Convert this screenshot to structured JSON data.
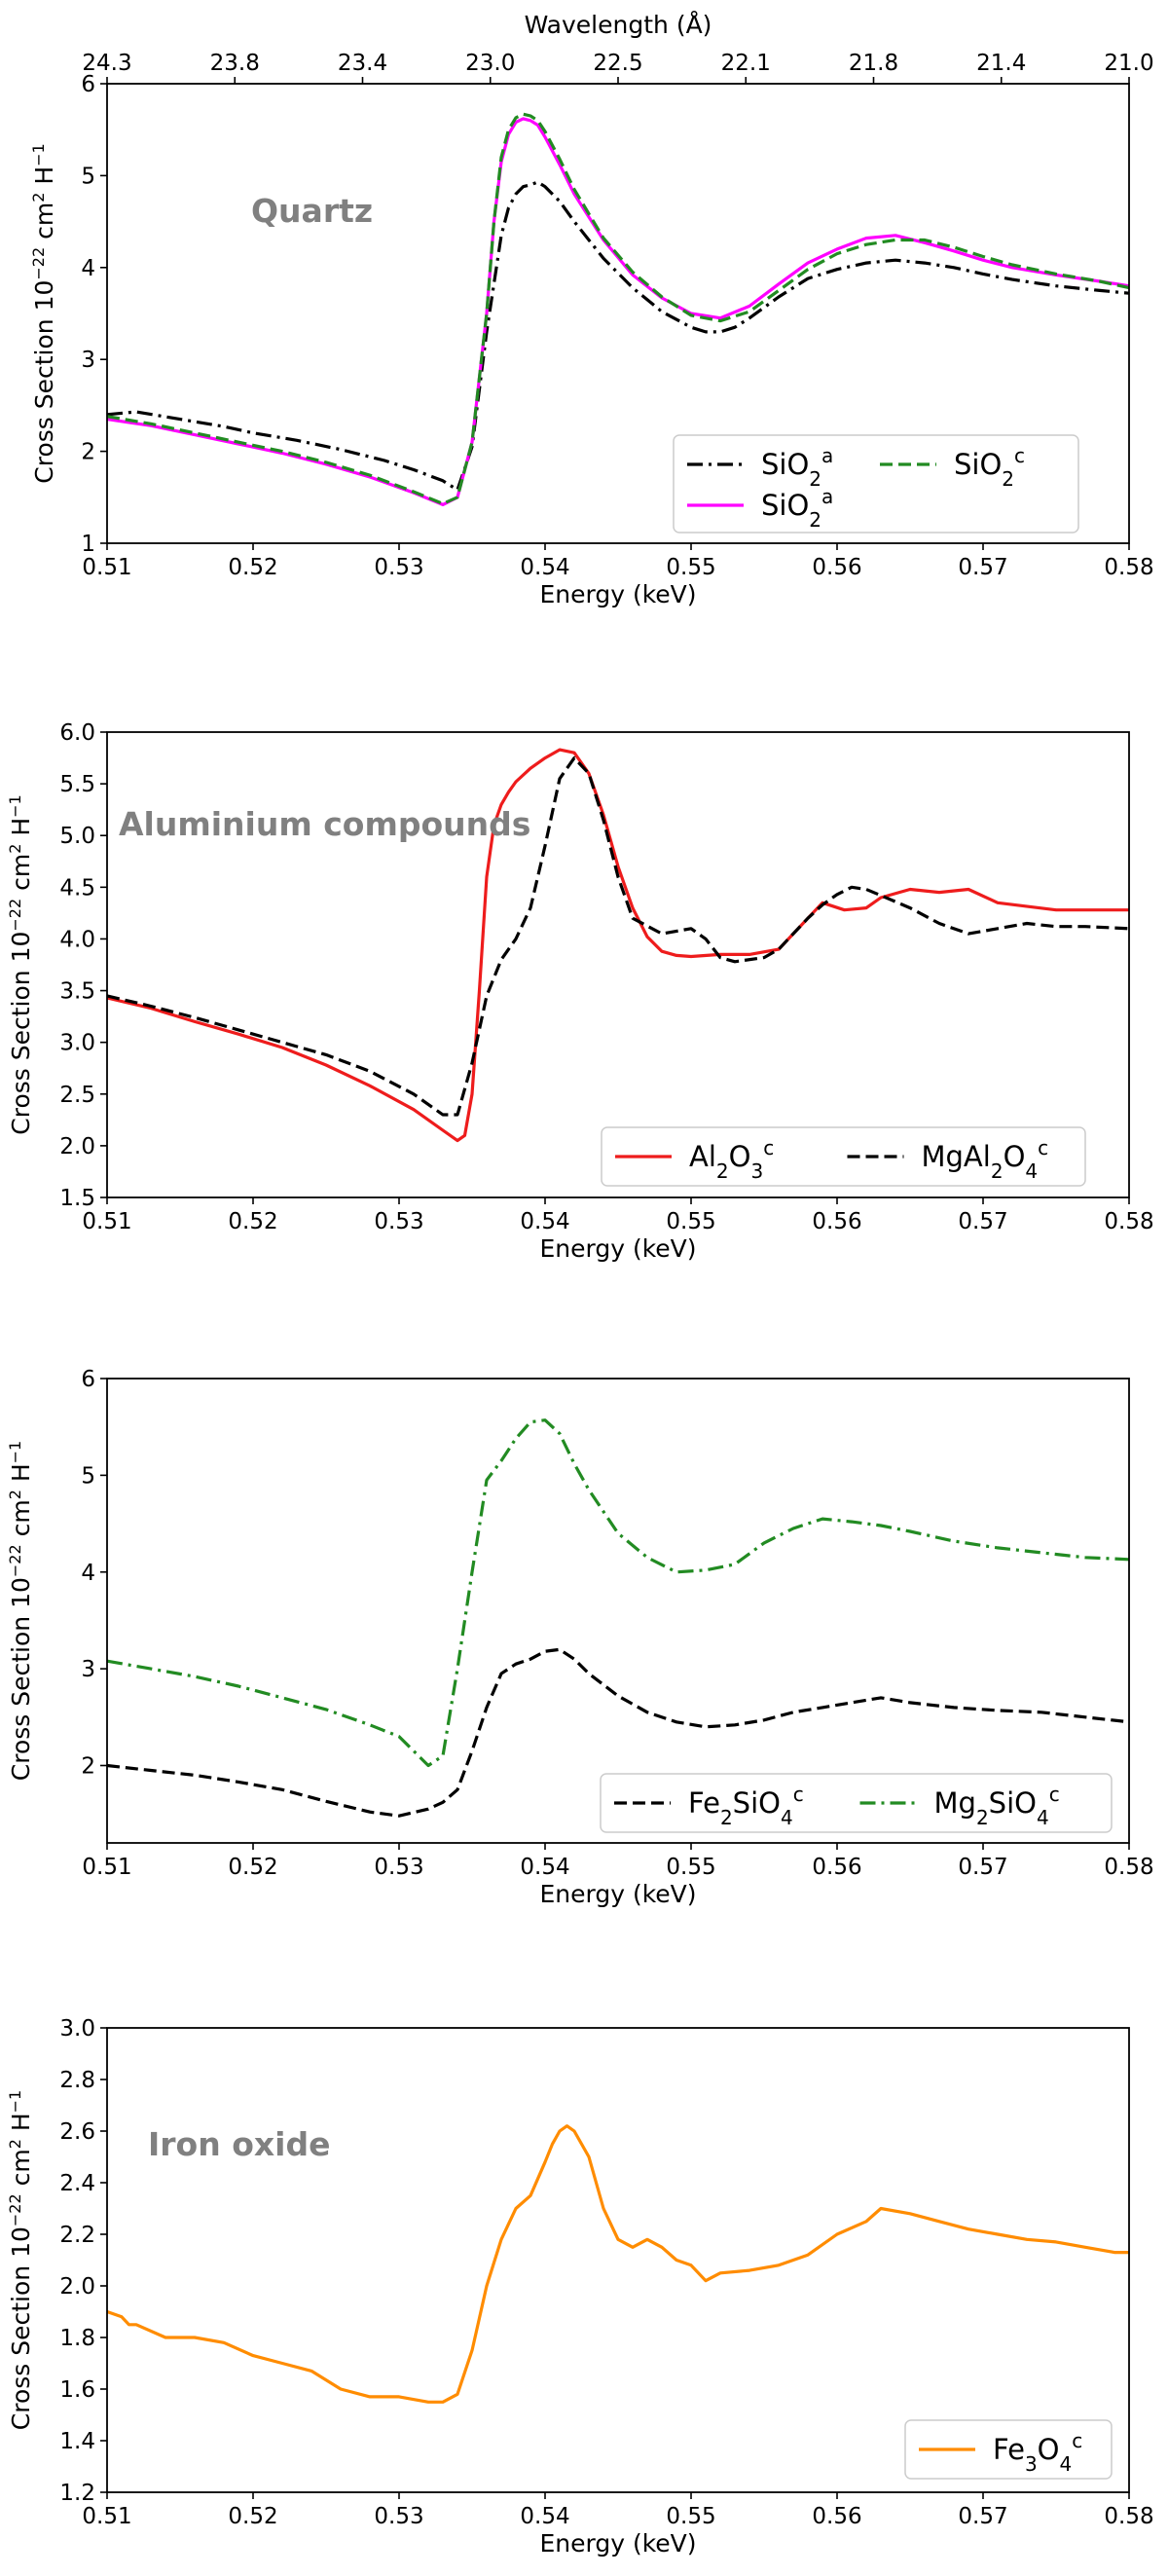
{
  "chart_data": [
    {
      "type": "line",
      "panel_title": "Quartz",
      "xlabel": "Energy (keV)",
      "ylabel": "Cross Section 10^{-22} cm^{2} H^{-1}",
      "xlim": [
        0.51,
        0.58
      ],
      "ylim": [
        1,
        6
      ],
      "xticks": [
        0.51,
        0.52,
        0.53,
        0.54,
        0.55,
        0.56,
        0.57,
        0.58
      ],
      "xtick_labels": [
        "0.51",
        "0.52",
        "0.53",
        "0.54",
        "0.55",
        "0.56",
        "0.57",
        "0.58"
      ],
      "yticks": [
        1,
        2,
        3,
        4,
        5,
        6
      ],
      "ytick_labels": [
        "1",
        "2",
        "3",
        "4",
        "5",
        "6"
      ],
      "top_axis": {
        "label": "Wavelength (Å)",
        "tick_labels": [
          "24.3",
          "23.8",
          "23.4",
          "23.0",
          "22.5",
          "22.1",
          "21.8",
          "21.4",
          "21.0"
        ]
      },
      "legend_columns": 2,
      "series": [
        {
          "name": "SiO2 (a)",
          "formula": [
            "SiO",
            "2",
            ""
          ],
          "sup": "a",
          "color": "#000000",
          "dash": "16,6,3,6",
          "x": [
            0.51,
            0.512,
            0.515,
            0.518,
            0.52,
            0.523,
            0.526,
            0.529,
            0.531,
            0.533,
            0.534,
            0.535,
            0.536,
            0.537,
            0.5375,
            0.538,
            0.5385,
            0.539,
            0.5395,
            0.54,
            0.541,
            0.542,
            0.544,
            0.546,
            0.548,
            0.55,
            0.551,
            0.552,
            0.553,
            0.554,
            0.556,
            0.558,
            0.56,
            0.562,
            0.564,
            0.566,
            0.568,
            0.57,
            0.572,
            0.575,
            0.578,
            0.58
          ],
          "y": [
            2.4,
            2.43,
            2.35,
            2.27,
            2.2,
            2.12,
            2.02,
            1.9,
            1.8,
            1.68,
            1.58,
            2.05,
            3.3,
            4.35,
            4.65,
            4.8,
            4.88,
            4.9,
            4.93,
            4.88,
            4.72,
            4.5,
            4.1,
            3.78,
            3.52,
            3.35,
            3.3,
            3.3,
            3.35,
            3.45,
            3.68,
            3.88,
            3.98,
            4.05,
            4.08,
            4.05,
            4.0,
            3.93,
            3.87,
            3.8,
            3.75,
            3.72
          ]
        },
        {
          "name": "SiO2 (a) magenta",
          "formula": [
            "SiO",
            "2",
            ""
          ],
          "sup": "a",
          "color": "#ff00ff",
          "dash": "",
          "x": [
            0.51,
            0.513,
            0.516,
            0.519,
            0.522,
            0.525,
            0.528,
            0.531,
            0.533,
            0.534,
            0.535,
            0.536,
            0.5365,
            0.537,
            0.5375,
            0.538,
            0.5385,
            0.539,
            0.5395,
            0.54,
            0.541,
            0.542,
            0.544,
            0.546,
            0.548,
            0.55,
            0.552,
            0.554,
            0.556,
            0.558,
            0.56,
            0.562,
            0.564,
            0.566,
            0.568,
            0.57,
            0.572,
            0.575,
            0.578,
            0.58
          ],
          "y": [
            2.35,
            2.28,
            2.18,
            2.08,
            1.98,
            1.86,
            1.72,
            1.55,
            1.42,
            1.5,
            2.1,
            3.5,
            4.5,
            5.15,
            5.45,
            5.58,
            5.62,
            5.6,
            5.55,
            5.42,
            5.12,
            4.8,
            4.3,
            3.92,
            3.67,
            3.5,
            3.45,
            3.58,
            3.82,
            4.05,
            4.2,
            4.32,
            4.35,
            4.27,
            4.18,
            4.08,
            4.0,
            3.92,
            3.85,
            3.8
          ]
        },
        {
          "name": "SiO2 (c)",
          "formula": [
            "SiO",
            "2",
            ""
          ],
          "sup": "c",
          "color": "#228b22",
          "dash": "13,6",
          "x": [
            0.51,
            0.513,
            0.516,
            0.519,
            0.522,
            0.525,
            0.528,
            0.531,
            0.533,
            0.534,
            0.535,
            0.536,
            0.5365,
            0.537,
            0.5375,
            0.538,
            0.5385,
            0.539,
            0.5395,
            0.54,
            0.541,
            0.542,
            0.544,
            0.546,
            0.548,
            0.55,
            0.552,
            0.554,
            0.556,
            0.558,
            0.56,
            0.562,
            0.564,
            0.566,
            0.568,
            0.57,
            0.572,
            0.575,
            0.578,
            0.58
          ],
          "y": [
            2.38,
            2.3,
            2.2,
            2.1,
            2.0,
            1.88,
            1.74,
            1.56,
            1.43,
            1.5,
            2.1,
            3.5,
            4.5,
            5.2,
            5.5,
            5.63,
            5.67,
            5.65,
            5.6,
            5.48,
            5.18,
            4.85,
            4.32,
            3.95,
            3.68,
            3.48,
            3.42,
            3.52,
            3.75,
            3.98,
            4.15,
            4.25,
            4.3,
            4.3,
            4.22,
            4.12,
            4.03,
            3.93,
            3.85,
            3.78
          ]
        }
      ]
    },
    {
      "type": "line",
      "panel_title": "Aluminium compounds",
      "xlabel": "Energy (keV)",
      "ylabel": "Cross Section 10^{-22} cm^{2} H^{-1}",
      "xlim": [
        0.51,
        0.58
      ],
      "ylim": [
        1.5,
        6.0
      ],
      "xticks": [
        0.51,
        0.52,
        0.53,
        0.54,
        0.55,
        0.56,
        0.57,
        0.58
      ],
      "xtick_labels": [
        "0.51",
        "0.52",
        "0.53",
        "0.54",
        "0.55",
        "0.56",
        "0.57",
        "0.58"
      ],
      "yticks": [
        1.5,
        2.0,
        2.5,
        3.0,
        3.5,
        4.0,
        4.5,
        5.0,
        5.5,
        6.0
      ],
      "ytick_labels": [
        "1.5",
        "2.0",
        "2.5",
        "3.0",
        "3.5",
        "4.0",
        "4.5",
        "5.0",
        "5.5",
        "6.0"
      ],
      "legend_columns": 2,
      "series": [
        {
          "name": "Al2O3 (c)",
          "formula": [
            "Al",
            "2",
            "O",
            "3",
            ""
          ],
          "sup": "c",
          "color": "#ee1c1c",
          "dash": "",
          "x": [
            0.51,
            0.513,
            0.516,
            0.519,
            0.522,
            0.525,
            0.528,
            0.531,
            0.533,
            0.534,
            0.5345,
            0.535,
            0.5355,
            0.536,
            0.5365,
            0.537,
            0.5375,
            0.538,
            0.539,
            0.54,
            0.541,
            0.542,
            0.543,
            0.544,
            0.545,
            0.546,
            0.547,
            0.548,
            0.549,
            0.55,
            0.552,
            0.554,
            0.556,
            0.558,
            0.559,
            0.5605,
            0.562,
            0.563,
            0.565,
            0.567,
            0.569,
            0.571,
            0.575,
            0.58
          ],
          "y": [
            3.43,
            3.33,
            3.2,
            3.08,
            2.95,
            2.78,
            2.58,
            2.35,
            2.15,
            2.05,
            2.1,
            2.5,
            3.5,
            4.6,
            5.1,
            5.3,
            5.42,
            5.52,
            5.65,
            5.75,
            5.83,
            5.8,
            5.6,
            5.2,
            4.7,
            4.3,
            4.02,
            3.88,
            3.84,
            3.83,
            3.85,
            3.85,
            3.9,
            4.2,
            4.35,
            4.28,
            4.3,
            4.4,
            4.48,
            4.45,
            4.48,
            4.35,
            4.28,
            4.28
          ]
        },
        {
          "name": "MgAl2O4 (c)",
          "formula": [
            "MgAl",
            "2",
            "O",
            "4",
            ""
          ],
          "sup": "c",
          "color": "#000000",
          "dash": "13,6",
          "x": [
            0.51,
            0.513,
            0.516,
            0.519,
            0.522,
            0.525,
            0.528,
            0.531,
            0.533,
            0.534,
            0.535,
            0.536,
            0.537,
            0.538,
            0.539,
            0.54,
            0.541,
            0.542,
            0.543,
            0.544,
            0.545,
            0.546,
            0.548,
            0.55,
            0.551,
            0.552,
            0.553,
            0.555,
            0.556,
            0.557,
            0.558,
            0.559,
            0.56,
            0.561,
            0.562,
            0.563,
            0.565,
            0.567,
            0.569,
            0.571,
            0.573,
            0.575,
            0.577,
            0.58
          ],
          "y": [
            3.45,
            3.35,
            3.24,
            3.12,
            3.0,
            2.88,
            2.72,
            2.5,
            2.3,
            2.3,
            2.8,
            3.45,
            3.8,
            4.0,
            4.3,
            4.9,
            5.55,
            5.75,
            5.6,
            5.15,
            4.6,
            4.2,
            4.05,
            4.1,
            4.0,
            3.82,
            3.78,
            3.82,
            3.9,
            4.05,
            4.2,
            4.33,
            4.43,
            4.5,
            4.48,
            4.42,
            4.3,
            4.15,
            4.05,
            4.1,
            4.15,
            4.12,
            4.12,
            4.1
          ]
        }
      ]
    },
    {
      "type": "line",
      "panel_title": "",
      "xlabel": "Energy (keV)",
      "ylabel": "Cross Section 10^{-22} cm^{2} H^{-1}",
      "xlim": [
        0.51,
        0.58
      ],
      "ylim": [
        1.2,
        6
      ],
      "xticks": [
        0.51,
        0.52,
        0.53,
        0.54,
        0.55,
        0.56,
        0.57,
        0.58
      ],
      "xtick_labels": [
        "0.51",
        "0.52",
        "0.53",
        "0.54",
        "0.55",
        "0.56",
        "0.57",
        "0.58"
      ],
      "yticks": [
        2,
        3,
        4,
        5,
        6
      ],
      "ytick_labels": [
        "2",
        "3",
        "4",
        "5",
        "6"
      ],
      "legend_columns": 2,
      "series": [
        {
          "name": "Fe2SiO4 (c)",
          "formula": [
            "Fe",
            "2",
            "SiO",
            "4",
            ""
          ],
          "sup": "c",
          "color": "#000000",
          "dash": "13,6",
          "x": [
            0.51,
            0.513,
            0.516,
            0.519,
            0.522,
            0.525,
            0.528,
            0.53,
            0.532,
            0.533,
            0.534,
            0.535,
            0.536,
            0.537,
            0.538,
            0.539,
            0.54,
            0.541,
            0.542,
            0.543,
            0.545,
            0.547,
            0.549,
            0.551,
            0.553,
            0.555,
            0.557,
            0.559,
            0.561,
            0.563,
            0.565,
            0.568,
            0.571,
            0.574,
            0.577,
            0.58
          ],
          "y": [
            2.0,
            1.95,
            1.9,
            1.83,
            1.75,
            1.63,
            1.52,
            1.48,
            1.55,
            1.62,
            1.75,
            2.15,
            2.6,
            2.95,
            3.05,
            3.1,
            3.18,
            3.2,
            3.1,
            2.95,
            2.72,
            2.55,
            2.45,
            2.4,
            2.42,
            2.47,
            2.55,
            2.6,
            2.65,
            2.7,
            2.65,
            2.6,
            2.57,
            2.55,
            2.5,
            2.45
          ]
        },
        {
          "name": "Mg2SiO4 (c)",
          "formula": [
            "Mg",
            "2",
            "SiO",
            "4",
            ""
          ],
          "sup": "c",
          "color": "#228b22",
          "dash": "16,6,3,6",
          "x": [
            0.51,
            0.513,
            0.516,
            0.519,
            0.522,
            0.525,
            0.528,
            0.53,
            0.531,
            0.532,
            0.533,
            0.534,
            0.535,
            0.536,
            0.537,
            0.538,
            0.539,
            0.54,
            0.541,
            0.542,
            0.543,
            0.545,
            0.547,
            0.549,
            0.551,
            0.553,
            0.555,
            0.557,
            0.559,
            0.561,
            0.563,
            0.565,
            0.568,
            0.571,
            0.574,
            0.577,
            0.58
          ],
          "y": [
            3.08,
            3.0,
            2.92,
            2.82,
            2.7,
            2.58,
            2.42,
            2.3,
            2.15,
            2.0,
            2.1,
            3.0,
            4.0,
            4.95,
            5.15,
            5.38,
            5.55,
            5.57,
            5.43,
            5.12,
            4.85,
            4.4,
            4.15,
            4.0,
            4.02,
            4.08,
            4.3,
            4.45,
            4.55,
            4.52,
            4.48,
            4.42,
            4.32,
            4.25,
            4.2,
            4.15,
            4.13
          ]
        }
      ]
    },
    {
      "type": "line",
      "panel_title": "Iron oxide",
      "xlabel": "Energy (keV)",
      "ylabel": "Cross Section 10^{-22} cm^{2} H^{-1}",
      "xlim": [
        0.51,
        0.58
      ],
      "ylim": [
        1.2,
        3.0
      ],
      "xticks": [
        0.51,
        0.52,
        0.53,
        0.54,
        0.55,
        0.56,
        0.57,
        0.58
      ],
      "xtick_labels": [
        "0.51",
        "0.52",
        "0.53",
        "0.54",
        "0.55",
        "0.56",
        "0.57",
        "0.58"
      ],
      "yticks": [
        1.2,
        1.4,
        1.6,
        1.8,
        2.0,
        2.2,
        2.4,
        2.6,
        2.8,
        3.0
      ],
      "ytick_labels": [
        "1.2",
        "1.4",
        "1.6",
        "1.8",
        "2.0",
        "2.2",
        "2.4",
        "2.6",
        "2.8",
        "3.0"
      ],
      "legend_columns": 1,
      "series": [
        {
          "name": "Fe3O4 (c)",
          "formula": [
            "Fe",
            "3",
            "O",
            "4",
            ""
          ],
          "sup": "c",
          "color": "#ff8c00",
          "dash": "",
          "x": [
            0.51,
            0.511,
            0.5115,
            0.512,
            0.514,
            0.516,
            0.518,
            0.52,
            0.522,
            0.524,
            0.526,
            0.528,
            0.53,
            0.532,
            0.533,
            0.534,
            0.535,
            0.536,
            0.537,
            0.538,
            0.539,
            0.54,
            0.5405,
            0.541,
            0.5415,
            0.542,
            0.543,
            0.544,
            0.545,
            0.546,
            0.547,
            0.548,
            0.549,
            0.55,
            0.551,
            0.552,
            0.554,
            0.556,
            0.558,
            0.56,
            0.562,
            0.563,
            0.565,
            0.567,
            0.569,
            0.571,
            0.573,
            0.575,
            0.577,
            0.579,
            0.58
          ],
          "y": [
            1.9,
            1.88,
            1.85,
            1.85,
            1.8,
            1.8,
            1.78,
            1.73,
            1.7,
            1.67,
            1.6,
            1.57,
            1.57,
            1.55,
            1.55,
            1.58,
            1.75,
            2.0,
            2.18,
            2.3,
            2.35,
            2.48,
            2.55,
            2.6,
            2.62,
            2.6,
            2.5,
            2.3,
            2.18,
            2.15,
            2.18,
            2.15,
            2.1,
            2.08,
            2.02,
            2.05,
            2.06,
            2.08,
            2.12,
            2.2,
            2.25,
            2.3,
            2.28,
            2.25,
            2.22,
            2.2,
            2.18,
            2.17,
            2.15,
            2.13,
            2.13
          ]
        }
      ]
    }
  ]
}
